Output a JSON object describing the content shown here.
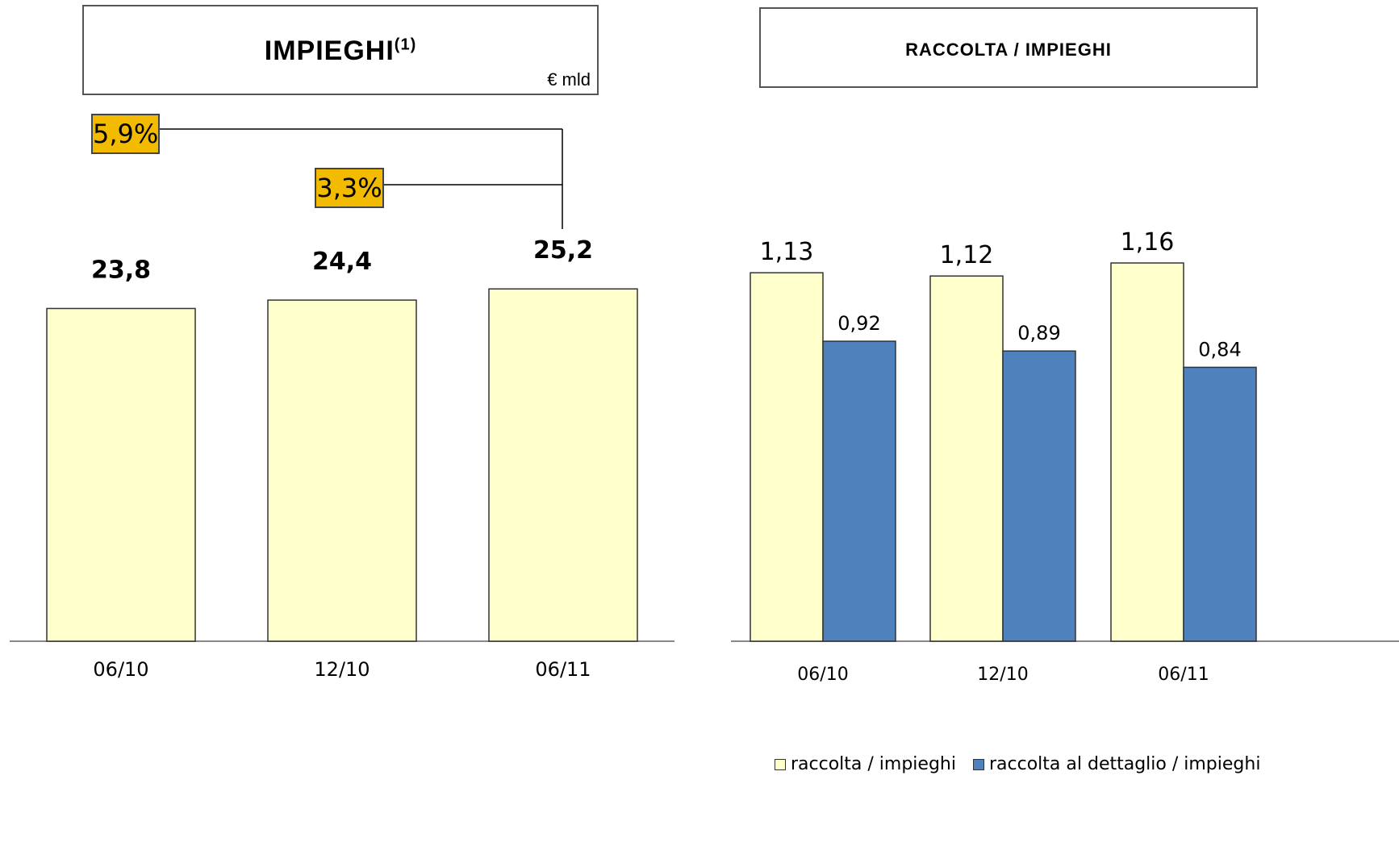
{
  "chart_data": [
    {
      "type": "bar",
      "title": "IMPIEGHI",
      "title_note": "(1)",
      "unit": "€ mld",
      "categories": [
        "06/10",
        "12/10",
        "06/11"
      ],
      "values": [
        23.8,
        24.4,
        25.2
      ],
      "value_labels": [
        "23,8",
        "24,4",
        "25,2"
      ],
      "ylim": [
        0,
        30
      ],
      "colors": {
        "bar": "#ffffcc"
      },
      "annotations": [
        {
          "label": "5,9%",
          "from": "06/10",
          "to": "06/11"
        },
        {
          "label": "3,3%",
          "from": "12/10",
          "to": "06/11"
        }
      ],
      "grid": false
    },
    {
      "type": "bar",
      "title": "RACCOLTA / IMPIEGHI",
      "categories": [
        "06/10",
        "12/10",
        "06/11"
      ],
      "series": [
        {
          "name": "raccolta / impieghi",
          "values": [
            1.13,
            1.12,
            1.16
          ],
          "value_labels": [
            "1,13",
            "1,12",
            "1,16"
          ],
          "color": "#ffffcc"
        },
        {
          "name": "raccolta al dettaglio / impieghi",
          "values": [
            0.92,
            0.89,
            0.84
          ],
          "value_labels": [
            "0,92",
            "0,89",
            "0,84"
          ],
          "color": "#4f81bd"
        }
      ],
      "ylim": [
        0,
        1.4
      ],
      "legend": "bottom-right",
      "grid": false
    }
  ]
}
